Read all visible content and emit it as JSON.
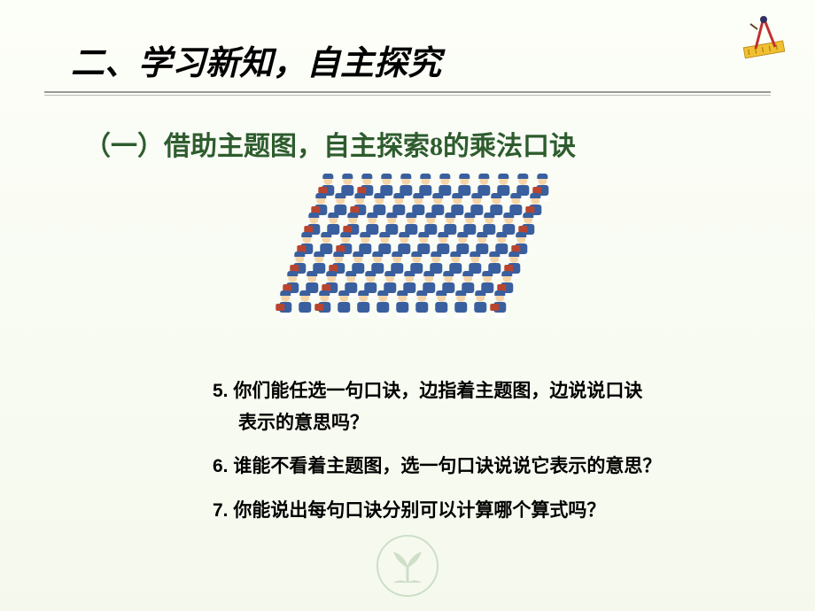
{
  "slide": {
    "main_title": "二、学习新知，自主探究",
    "subtitle": "（一）借助主题图，自主探索8的乘法口诀",
    "image": {
      "description": "marching-band-grid",
      "rows": 7,
      "cols": 12,
      "person_colors": {
        "uniform": "#3a5f9e",
        "skin": "#f5d5a8",
        "drum": "#b84530",
        "legs": "#ffffff"
      }
    },
    "questions": [
      {
        "num": "5.",
        "line1": "你们能任选一句口诀，边指着主题图，边说说口诀",
        "line2": "表示的意思吗？"
      },
      {
        "num": "6.",
        "line1": "谁能不看着主题图，选一句口诀说说它表示的意思？",
        "line2": ""
      },
      {
        "num": "7.",
        "line1": "你能说出每句口诀分别可以计算哪个算式吗？",
        "line2": ""
      }
    ],
    "styling": {
      "background_gradient": [
        "#fcfef8",
        "#f5f9ed"
      ],
      "title_font": "KaiTi",
      "title_fontsize": 38,
      "subtitle_color": "#2e5c2e",
      "subtitle_fontsize": 30,
      "question_font": "SimHei",
      "question_fontsize": 21,
      "underline_color": "#999999"
    },
    "corner_icon": {
      "type": "compass-ruler-icon",
      "colors": {
        "ruler": "#f0c030",
        "compass": "#c03030"
      }
    },
    "watermark": {
      "type": "sprout-icon",
      "color": "#7ba87b"
    }
  }
}
